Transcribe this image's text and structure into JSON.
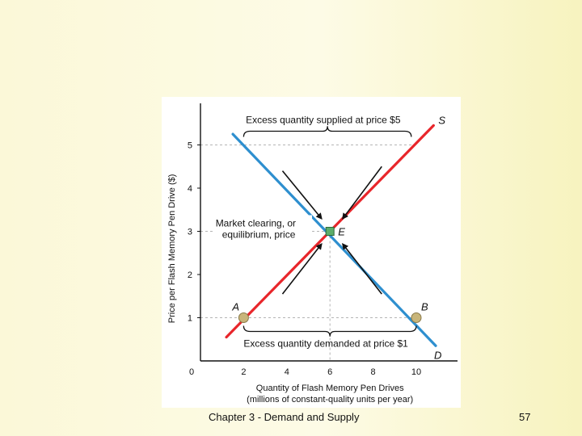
{
  "chart_data": {
    "type": "line",
    "xlabel": "Quantity of Flash Memory Pen Drives",
    "xlabel_sub": "(millions of constant-quality units per year)",
    "ylabel": "Price per Flash Memory Pen Drive ($)",
    "xlim": [
      0,
      11.5
    ],
    "ylim": [
      0,
      5.6
    ],
    "x_ticks": [
      0,
      2,
      4,
      6,
      8,
      10
    ],
    "y_ticks": [
      1,
      2,
      3,
      4,
      5
    ],
    "grid": false,
    "series": [
      {
        "name": "S",
        "color": "#e8262b",
        "points": [
          [
            1.2,
            0.55
          ],
          [
            10.8,
            5.45
          ]
        ]
      },
      {
        "name": "D",
        "color": "#2e8fcf",
        "points": [
          [
            1.5,
            5.25
          ],
          [
            10.9,
            0.35
          ]
        ]
      }
    ],
    "points": [
      {
        "label": "A",
        "x": 2,
        "y": 1,
        "color": "#c8b57a"
      },
      {
        "label": "E",
        "x": 6,
        "y": 3,
        "color": "#5cad6a"
      },
      {
        "label": "B",
        "x": 10,
        "y": 1,
        "color": "#c8b57a"
      }
    ],
    "annotations": {
      "excess_supply": "Excess quantity supplied at price $5",
      "excess_demand": "Excess quantity demanded at price $1",
      "equilibrium_line1": "Market clearing, or",
      "equilibrium_line2": "equilibrium, price"
    }
  },
  "footer": {
    "chapter": "Chapter 3 - Demand and Supply",
    "page": "57"
  }
}
